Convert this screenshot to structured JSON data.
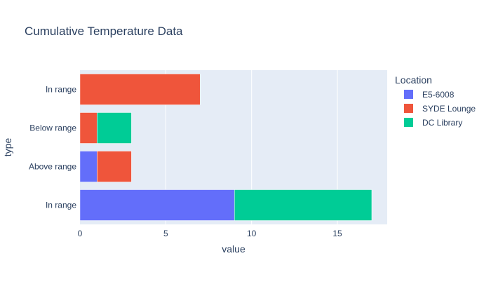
{
  "chart_data": {
    "type": "bar",
    "orientation": "horizontal",
    "barmode": "stack",
    "title": "Cumulative Temperature Data",
    "xlabel": "value",
    "ylabel": "type",
    "xlim": [
      0,
      17.9
    ],
    "xticks": [
      0,
      5,
      10,
      15
    ],
    "grid": true,
    "legend": {
      "title": "Location",
      "placement": "right"
    },
    "categories": [
      "In range",
      "Above range",
      "Below range",
      "In range"
    ],
    "series": [
      {
        "name": "E5-6008",
        "color": "#636efa",
        "values": [
          9,
          1,
          0,
          0
        ]
      },
      {
        "name": "SYDE Lounge",
        "color": "#ef553b",
        "values": [
          0,
          2,
          1,
          7
        ]
      },
      {
        "name": "DC Library",
        "color": "#00cc96",
        "values": [
          8,
          0,
          2,
          0
        ]
      }
    ]
  },
  "colors": {
    "plot_bg": "#e5ecf6",
    "text": "#2a3f5f",
    "grid": "#ffffff"
  }
}
